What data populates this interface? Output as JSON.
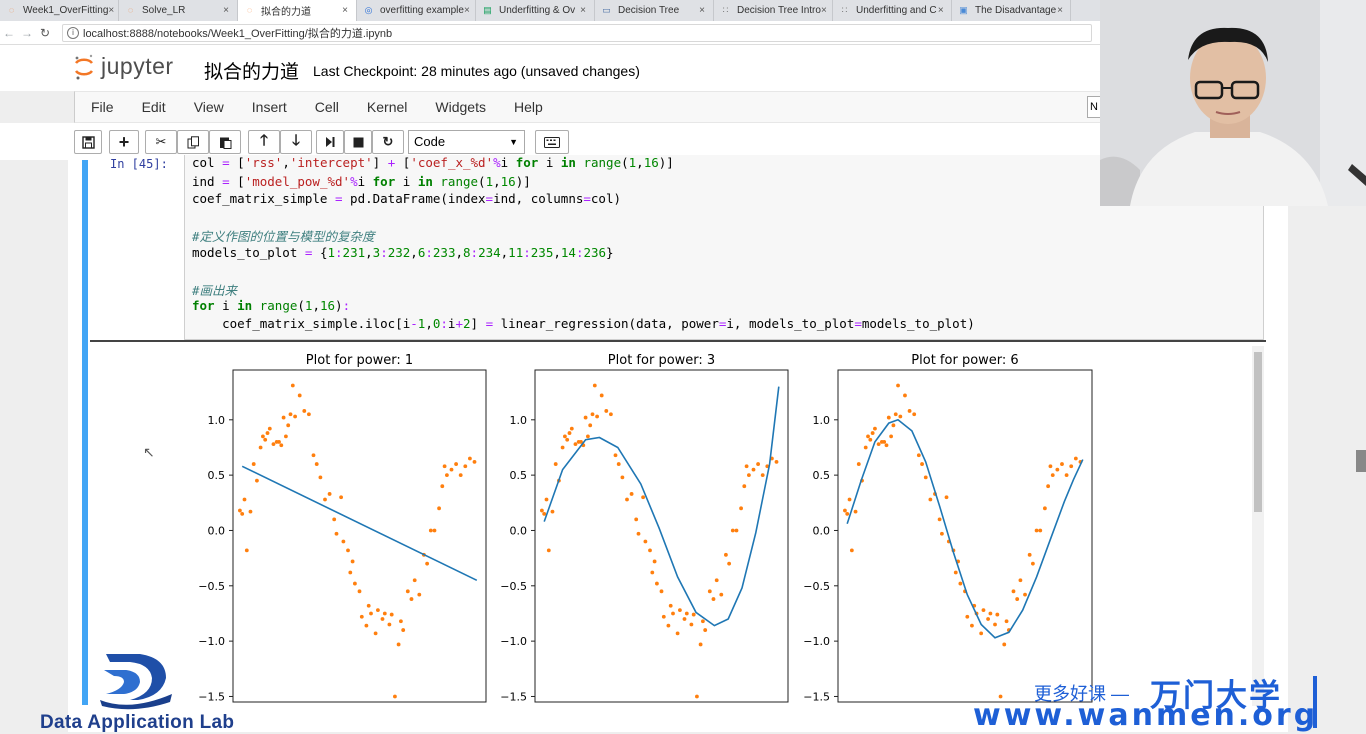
{
  "browser": {
    "tabs": [
      {
        "title": "Week1_OverFitting",
        "icon": "jupyter-icon",
        "active": false
      },
      {
        "title": "Solve_LR",
        "icon": "jupyter-icon",
        "active": false
      },
      {
        "title": "拟合的力道",
        "icon": "jupyter-icon",
        "active": true
      },
      {
        "title": "overfitting example",
        "icon": "globe-icon",
        "active": false
      },
      {
        "title": "Underfitting & Ov",
        "icon": "sheets-icon",
        "active": false
      },
      {
        "title": "Decision Tree",
        "icon": "slides-icon",
        "active": false
      },
      {
        "title": "Decision Tree Intro",
        "icon": "dots-icon",
        "active": false
      },
      {
        "title": "Underfitting and C",
        "icon": "dots-icon",
        "active": false
      },
      {
        "title": "The Disadvantage",
        "icon": "doc-icon",
        "active": false
      }
    ],
    "url": "localhost:8888/notebooks/Week1_OverFitting/拟合的力道.ipynb"
  },
  "jupyter": {
    "logo_text": "jupyter",
    "notebook_title": "拟合的力道",
    "checkpoint": "Last Checkpoint: 28 minutes ago (unsaved changes)",
    "menu": [
      "File",
      "Edit",
      "View",
      "Insert",
      "Cell",
      "Kernel",
      "Widgets",
      "Help"
    ],
    "kernel_indicator": "N",
    "cell_type": "Code"
  },
  "cell": {
    "prompt": "In  [45]:",
    "code_lines": [
      "col = ['rss','intercept'] + ['coef_x_%d'%i for i in range(1,16)]",
      "ind = ['model_pow_%d'%i for i in range(1,16)]",
      "coef_matrix_simple = pd.DataFrame(index=ind, columns=col)",
      "",
      "#定义作图的位置与模型的复杂度",
      "models_to_plot = {1:231,3:232,6:233,8:234,11:235,14:236}",
      "",
      "#画出来",
      "for i in range(1,16):",
      "    coef_matrix_simple.iloc[i-1,0:i+2] = linear_regression(data, power=i, models_to_plot=models_to_plot)"
    ]
  },
  "chart_data": [
    {
      "type": "scatter",
      "title": "Plot for power: 1",
      "yticks": [
        "1.0",
        "0.5",
        "0.0",
        "−0.5",
        "−1.0",
        "−1.5"
      ],
      "ylim": [
        -1.55,
        1.45
      ],
      "xlim": [
        0.9,
        6.4
      ],
      "points_color": "#ff7f0e",
      "line_color": "#1f77b4",
      "fit_line": [
        [
          1.1,
          0.58
        ],
        [
          6.2,
          -0.45
        ]
      ]
    },
    {
      "type": "scatter",
      "title": "Plot for power: 3",
      "yticks": [
        "1.0",
        "0.5",
        "0.0",
        "−0.5",
        "−1.0",
        "−1.5"
      ],
      "ylim": [
        -1.55,
        1.45
      ],
      "xlim": [
        0.9,
        6.4
      ],
      "points_color": "#ff7f0e",
      "line_color": "#1f77b4",
      "fit_curve": "cubic",
      "fit_line": [
        [
          1.1,
          0.08
        ],
        [
          1.5,
          0.55
        ],
        [
          2.0,
          0.82
        ],
        [
          2.3,
          0.84
        ],
        [
          2.7,
          0.75
        ],
        [
          3.2,
          0.42
        ],
        [
          3.6,
          0.02
        ],
        [
          4.0,
          -0.42
        ],
        [
          4.4,
          -0.74
        ],
        [
          4.8,
          -0.86
        ],
        [
          5.1,
          -0.8
        ],
        [
          5.4,
          -0.52
        ],
        [
          5.7,
          -0.02
        ],
        [
          6.0,
          0.6
        ],
        [
          6.2,
          1.3
        ]
      ]
    },
    {
      "type": "scatter",
      "title": "Plot for power: 6",
      "yticks": [
        "1.0",
        "0.5",
        "0.0",
        "−0.5",
        "−1.0",
        "−1.5"
      ],
      "ylim": [
        -1.55,
        1.45
      ],
      "xlim": [
        0.9,
        6.4
      ],
      "points_color": "#ff7f0e",
      "line_color": "#1f77b4",
      "fit_curve": "sine",
      "fit_line": [
        [
          1.1,
          0.06
        ],
        [
          1.4,
          0.45
        ],
        [
          1.7,
          0.8
        ],
        [
          2.0,
          0.97
        ],
        [
          2.2,
          1.0
        ],
        [
          2.5,
          0.9
        ],
        [
          2.8,
          0.62
        ],
        [
          3.1,
          0.22
        ],
        [
          3.4,
          -0.2
        ],
        [
          3.7,
          -0.58
        ],
        [
          4.0,
          -0.85
        ],
        [
          4.3,
          -0.97
        ],
        [
          4.6,
          -0.92
        ],
        [
          4.9,
          -0.72
        ],
        [
          5.2,
          -0.42
        ],
        [
          5.5,
          -0.08
        ],
        [
          5.8,
          0.26
        ],
        [
          6.0,
          0.46
        ],
        [
          6.2,
          0.64
        ]
      ]
    }
  ],
  "scatter_points": [
    [
      1.05,
      0.18
    ],
    [
      1.1,
      0.15
    ],
    [
      1.15,
      0.28
    ],
    [
      1.2,
      -0.18
    ],
    [
      1.28,
      0.17
    ],
    [
      1.35,
      0.6
    ],
    [
      1.42,
      0.45
    ],
    [
      1.5,
      0.75
    ],
    [
      1.55,
      0.85
    ],
    [
      1.6,
      0.82
    ],
    [
      1.65,
      0.88
    ],
    [
      1.7,
      0.92
    ],
    [
      1.78,
      0.78
    ],
    [
      1.85,
      0.8
    ],
    [
      1.9,
      0.8
    ],
    [
      1.95,
      0.77
    ],
    [
      2.0,
      1.02
    ],
    [
      2.05,
      0.85
    ],
    [
      2.1,
      0.95
    ],
    [
      2.15,
      1.05
    ],
    [
      2.2,
      1.31
    ],
    [
      2.25,
      1.03
    ],
    [
      2.35,
      1.22
    ],
    [
      2.45,
      1.08
    ],
    [
      2.55,
      1.05
    ],
    [
      2.65,
      0.68
    ],
    [
      2.72,
      0.6
    ],
    [
      2.8,
      0.48
    ],
    [
      2.9,
      0.28
    ],
    [
      3.0,
      0.33
    ],
    [
      3.1,
      0.1
    ],
    [
      3.15,
      -0.03
    ],
    [
      3.25,
      0.3
    ],
    [
      3.3,
      -0.1
    ],
    [
      3.4,
      -0.18
    ],
    [
      3.45,
      -0.38
    ],
    [
      3.5,
      -0.28
    ],
    [
      3.55,
      -0.48
    ],
    [
      3.65,
      -0.55
    ],
    [
      3.7,
      -0.78
    ],
    [
      3.8,
      -0.86
    ],
    [
      3.85,
      -0.68
    ],
    [
      3.9,
      -0.75
    ],
    [
      4.0,
      -0.93
    ],
    [
      4.05,
      -0.72
    ],
    [
      4.15,
      -0.8
    ],
    [
      4.2,
      -0.75
    ],
    [
      4.3,
      -0.85
    ],
    [
      4.35,
      -0.76
    ],
    [
      4.42,
      -1.5
    ],
    [
      4.5,
      -1.03
    ],
    [
      4.55,
      -0.82
    ],
    [
      4.6,
      -0.9
    ],
    [
      4.7,
      -0.55
    ],
    [
      4.78,
      -0.62
    ],
    [
      4.85,
      -0.45
    ],
    [
      4.95,
      -0.58
    ],
    [
      5.05,
      -0.22
    ],
    [
      5.12,
      -0.3
    ],
    [
      5.2,
      0.0
    ],
    [
      5.28,
      0.0
    ],
    [
      5.38,
      0.2
    ],
    [
      5.45,
      0.4
    ],
    [
      5.5,
      0.58
    ],
    [
      5.55,
      0.5
    ],
    [
      5.65,
      0.55
    ],
    [
      5.75,
      0.6
    ],
    [
      5.85,
      0.5
    ],
    [
      5.95,
      0.58
    ],
    [
      6.05,
      0.65
    ],
    [
      6.15,
      0.62
    ]
  ],
  "branding": {
    "lab_name": "Data Application Lab",
    "more_courses": "更多好课 —",
    "brand": "万门大学",
    "url": "www.wanmen.org"
  }
}
